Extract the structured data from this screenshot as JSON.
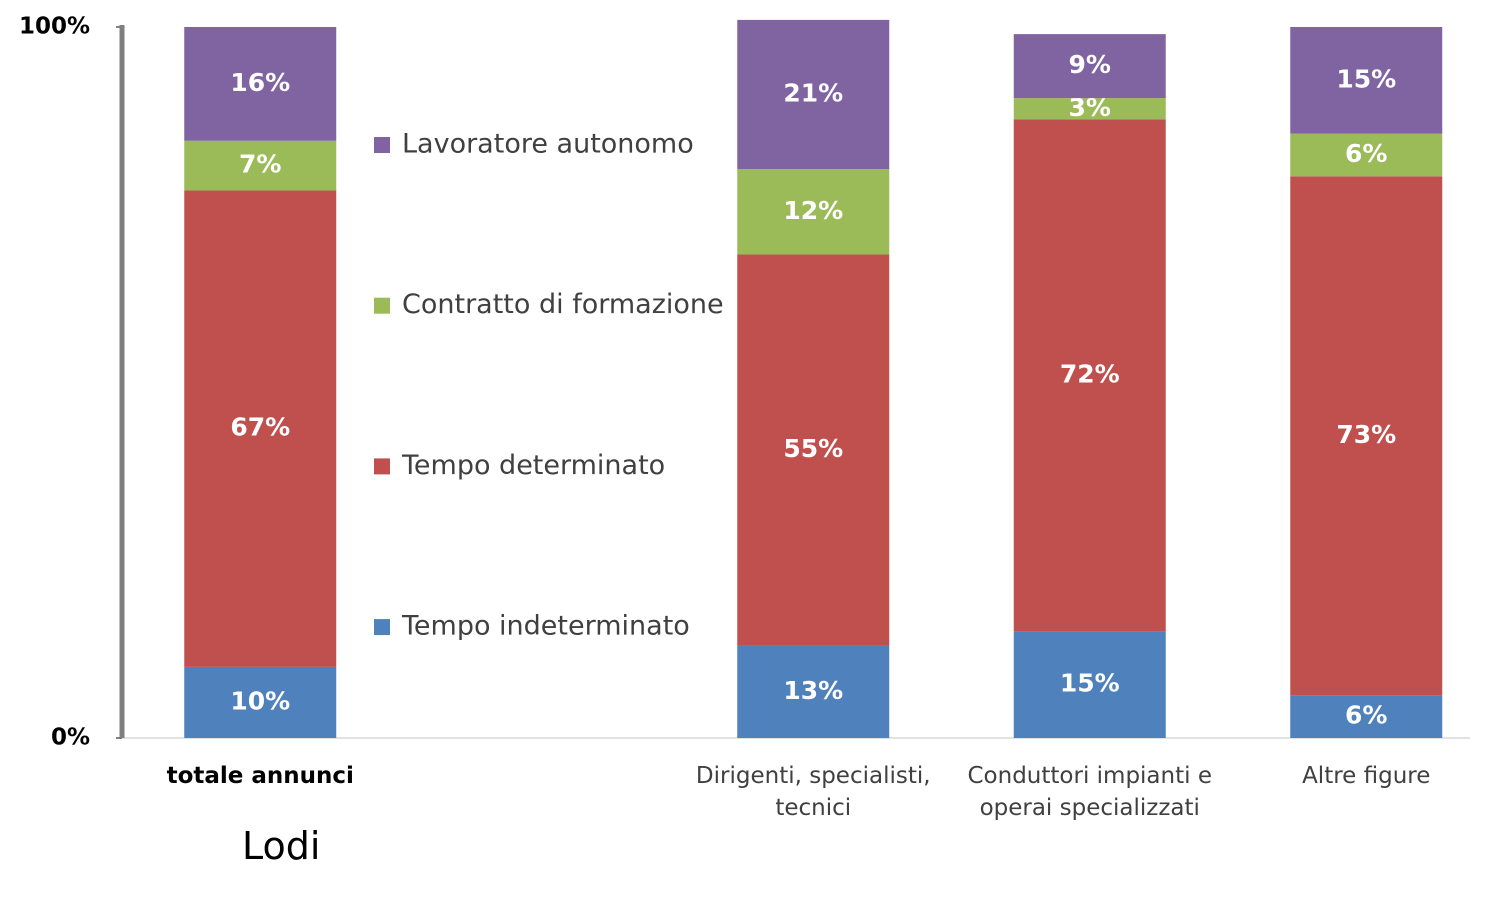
{
  "chart_data": {
    "type": "stacked_bar",
    "annotation": "Lodi",
    "categories": [
      "totale annunci",
      null,
      "Dirigenti, specialisti, tecnici",
      "Conduttori impianti e operai specializzati",
      "Altre figure"
    ],
    "series": [
      {
        "name": "Tempo indeterminato",
        "color": "#4f81bd",
        "values": [
          10,
          null,
          13,
          15,
          6
        ],
        "value_labels": [
          "10%",
          null,
          "13%",
          "15%",
          "6%"
        ]
      },
      {
        "name": "Tempo determinato",
        "color": "#c0504d",
        "values": [
          67,
          null,
          55,
          72,
          73
        ],
        "value_labels": [
          "67%",
          null,
          "55%",
          "72%",
          "73%"
        ]
      },
      {
        "name": "Contratto di formazione",
        "color": "#9bbb59",
        "values": [
          7,
          null,
          12,
          3,
          6
        ],
        "value_labels": [
          "7%",
          null,
          "12%",
          "3%",
          "6%"
        ]
      },
      {
        "name": "Lavoratore autonomo",
        "color": "#8064a2",
        "values": [
          16,
          null,
          21,
          9,
          15
        ],
        "value_labels": [
          "16%",
          null,
          "21%",
          "9%",
          "15%"
        ]
      }
    ],
    "ylim": [
      0,
      100
    ],
    "yticks": [
      {
        "value": 0,
        "label": "0%"
      },
      {
        "value": 100,
        "label": "100%"
      }
    ]
  }
}
